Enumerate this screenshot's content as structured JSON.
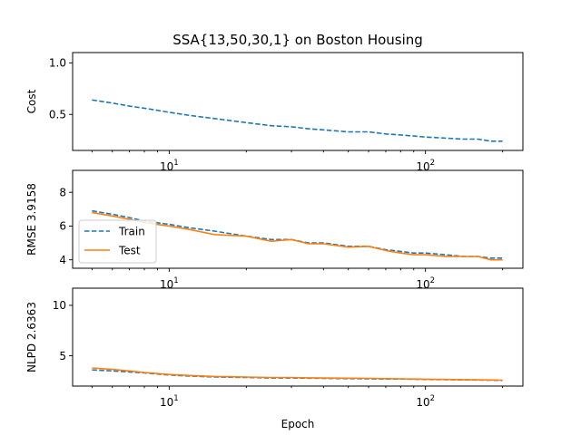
{
  "chart_data": {
    "type": "line",
    "title": "SSA{13,50,30,1} on Boston Housing",
    "xlabel": "Epoch",
    "xscale": "log",
    "x": [
      5,
      6,
      7,
      8,
      10,
      12,
      15,
      20,
      25,
      30,
      35,
      40,
      50,
      60,
      70,
      80,
      90,
      100,
      120,
      140,
      160,
      180,
      200
    ],
    "panels": [
      {
        "ylabel": "Cost",
        "ylim": [
          0.15,
          1.1
        ],
        "yticks": [
          "0.5",
          "1.0"
        ],
        "ytick_values": [
          0.5,
          1.0
        ],
        "legend": false,
        "series": [
          {
            "name": "Train",
            "color": "#1f77b4",
            "dash": true,
            "values": [
              0.64,
              0.61,
              0.58,
              0.56,
              0.52,
              0.49,
              0.46,
              0.42,
              0.39,
              0.38,
              0.36,
              0.35,
              0.33,
              0.33,
              0.31,
              0.3,
              0.29,
              0.28,
              0.27,
              0.26,
              0.26,
              0.24,
              0.24
            ]
          }
        ]
      },
      {
        "ylabel": "RMSE 3.9158",
        "ylim": [
          3.5,
          9.3
        ],
        "yticks": [
          "4",
          "6",
          "8"
        ],
        "ytick_values": [
          4,
          6,
          8
        ],
        "legend": true,
        "series": [
          {
            "name": "Train",
            "color": "#1f77b4",
            "dash": true,
            "values": [
              6.9,
              6.7,
              6.5,
              6.3,
              6.1,
              5.9,
              5.7,
              5.4,
              5.2,
              5.2,
              5.0,
              5.0,
              4.8,
              4.8,
              4.6,
              4.5,
              4.4,
              4.4,
              4.3,
              4.2,
              4.2,
              4.1,
              4.1
            ]
          },
          {
            "name": "Test",
            "color": "#ff7f0e",
            "dash": false,
            "values": [
              6.8,
              6.6,
              6.4,
              6.2,
              6.0,
              5.8,
              5.5,
              5.4,
              5.1,
              5.2,
              4.95,
              4.95,
              4.75,
              4.8,
              4.55,
              4.4,
              4.3,
              4.3,
              4.2,
              4.2,
              4.2,
              4.0,
              4.0
            ]
          }
        ]
      },
      {
        "ylabel": "NLPD 2.6363",
        "ylim": [
          2.0,
          11.7
        ],
        "yticks": [
          "5",
          "10"
        ],
        "ytick_values": [
          5,
          10
        ],
        "legend": false,
        "series": [
          {
            "name": "Train",
            "color": "#1f77b4",
            "dash": true,
            "values": [
              3.6,
              3.5,
              3.4,
              3.3,
              3.1,
              3.0,
              2.9,
              2.85,
              2.8,
              2.8,
              2.78,
              2.76,
              2.74,
              2.72,
              2.7,
              2.7,
              2.68,
              2.66,
              2.64,
              2.62,
              2.6,
              2.58,
              2.56
            ]
          },
          {
            "name": "Test",
            "color": "#ff7f0e",
            "dash": false,
            "values": [
              3.8,
              3.65,
              3.5,
              3.35,
              3.15,
              3.05,
              2.95,
              2.9,
              2.85,
              2.85,
              2.82,
              2.8,
              2.78,
              2.76,
              2.74,
              2.72,
              2.7,
              2.68,
              2.66,
              2.64,
              2.62,
              2.6,
              2.58
            ]
          }
        ]
      }
    ],
    "xticks": [
      {
        "value": 10,
        "base": "10",
        "exp": "1"
      },
      {
        "value": 100,
        "base": "10",
        "exp": "2"
      }
    ],
    "legend_entries": [
      "Train",
      "Test"
    ],
    "grid": false
  }
}
